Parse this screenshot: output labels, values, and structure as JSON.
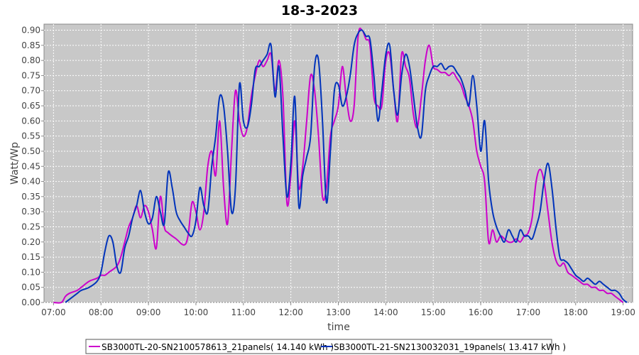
{
  "chart_data": {
    "type": "line",
    "title": "18-3-2023",
    "xlabel": "time",
    "ylabel": "Watt/Wp",
    "xlim": [
      "06:48",
      "19:12"
    ],
    "ylim": [
      0,
      0.92
    ],
    "yticks": [
      "0.00",
      "0.05",
      "0.10",
      "0.15",
      "0.20",
      "0.25",
      "0.30",
      "0.35",
      "0.40",
      "0.45",
      "0.50",
      "0.55",
      "0.60",
      "0.65",
      "0.70",
      "0.75",
      "0.80",
      "0.85",
      "0.90"
    ],
    "xticks": [
      "07:00",
      "08:00",
      "09:00",
      "10:00",
      "11:00",
      "12:00",
      "13:00",
      "14:00",
      "15:00",
      "16:00",
      "17:00",
      "18:00",
      "19:00"
    ],
    "grid": true,
    "legend_position": "bottom",
    "series": [
      {
        "name": "SB3000TL-20-SN2100578613_21panels( 14.140 kWh )",
        "color": "#cc00cc",
        "points": [
          [
            "07:00",
            0.0
          ],
          [
            "07:10",
            0.0
          ],
          [
            "07:15",
            0.02
          ],
          [
            "07:20",
            0.03
          ],
          [
            "07:30",
            0.04
          ],
          [
            "07:35",
            0.05
          ],
          [
            "07:45",
            0.07
          ],
          [
            "07:55",
            0.08
          ],
          [
            "08:00",
            0.09
          ],
          [
            "08:05",
            0.09
          ],
          [
            "08:10",
            0.1
          ],
          [
            "08:20",
            0.12
          ],
          [
            "08:25",
            0.15
          ],
          [
            "08:30",
            0.2
          ],
          [
            "08:35",
            0.25
          ],
          [
            "08:40",
            0.28
          ],
          [
            "08:45",
            0.32
          ],
          [
            "08:50",
            0.28
          ],
          [
            "08:55",
            0.32
          ],
          [
            "09:00",
            0.3
          ],
          [
            "09:05",
            0.24
          ],
          [
            "09:10",
            0.18
          ],
          [
            "09:15",
            0.35
          ],
          [
            "09:20",
            0.25
          ],
          [
            "09:25",
            0.23
          ],
          [
            "09:35",
            0.21
          ],
          [
            "09:45",
            0.19
          ],
          [
            "09:50",
            0.22
          ],
          [
            "09:55",
            0.33
          ],
          [
            "10:00",
            0.3
          ],
          [
            "10:05",
            0.24
          ],
          [
            "10:10",
            0.3
          ],
          [
            "10:15",
            0.45
          ],
          [
            "10:20",
            0.5
          ],
          [
            "10:25",
            0.42
          ],
          [
            "10:30",
            0.6
          ],
          [
            "10:35",
            0.38
          ],
          [
            "10:40",
            0.26
          ],
          [
            "10:45",
            0.5
          ],
          [
            "10:50",
            0.7
          ],
          [
            "10:55",
            0.6
          ],
          [
            "11:00",
            0.55
          ],
          [
            "11:05",
            0.58
          ],
          [
            "11:10",
            0.68
          ],
          [
            "11:15",
            0.75
          ],
          [
            "11:20",
            0.8
          ],
          [
            "11:25",
            0.78
          ],
          [
            "11:30",
            0.8
          ],
          [
            "11:35",
            0.82
          ],
          [
            "11:40",
            0.7
          ],
          [
            "11:45",
            0.8
          ],
          [
            "11:50",
            0.68
          ],
          [
            "11:55",
            0.33
          ],
          [
            "12:00",
            0.42
          ],
          [
            "12:05",
            0.6
          ],
          [
            "12:10",
            0.38
          ],
          [
            "12:15",
            0.45
          ],
          [
            "12:20",
            0.6
          ],
          [
            "12:25",
            0.75
          ],
          [
            "12:30",
            0.7
          ],
          [
            "12:35",
            0.55
          ],
          [
            "12:40",
            0.35
          ],
          [
            "12:45",
            0.38
          ],
          [
            "12:50",
            0.55
          ],
          [
            "12:55",
            0.6
          ],
          [
            "13:00",
            0.65
          ],
          [
            "13:05",
            0.78
          ],
          [
            "13:10",
            0.68
          ],
          [
            "13:15",
            0.6
          ],
          [
            "13:20",
            0.65
          ],
          [
            "13:25",
            0.88
          ],
          [
            "13:30",
            0.9
          ],
          [
            "13:35",
            0.87
          ],
          [
            "13:40",
            0.85
          ],
          [
            "13:45",
            0.68
          ],
          [
            "13:50",
            0.65
          ],
          [
            "13:55",
            0.65
          ],
          [
            "14:00",
            0.8
          ],
          [
            "14:05",
            0.82
          ],
          [
            "14:10",
            0.7
          ],
          [
            "14:15",
            0.6
          ],
          [
            "14:20",
            0.82
          ],
          [
            "14:25",
            0.78
          ],
          [
            "14:30",
            0.74
          ],
          [
            "14:35",
            0.62
          ],
          [
            "14:40",
            0.58
          ],
          [
            "14:45",
            0.68
          ],
          [
            "14:50",
            0.8
          ],
          [
            "14:55",
            0.85
          ],
          [
            "15:00",
            0.78
          ],
          [
            "15:05",
            0.77
          ],
          [
            "15:10",
            0.76
          ],
          [
            "15:15",
            0.76
          ],
          [
            "15:20",
            0.75
          ],
          [
            "15:25",
            0.76
          ],
          [
            "15:30",
            0.74
          ],
          [
            "15:35",
            0.72
          ],
          [
            "15:40",
            0.68
          ],
          [
            "15:45",
            0.65
          ],
          [
            "15:50",
            0.6
          ],
          [
            "15:55",
            0.5
          ],
          [
            "16:00",
            0.45
          ],
          [
            "16:05",
            0.4
          ],
          [
            "16:10",
            0.2
          ],
          [
            "16:15",
            0.24
          ],
          [
            "16:20",
            0.2
          ],
          [
            "16:25",
            0.22
          ],
          [
            "16:30",
            0.21
          ],
          [
            "16:35",
            0.2
          ],
          [
            "16:40",
            0.2
          ],
          [
            "16:45",
            0.21
          ],
          [
            "16:50",
            0.2
          ],
          [
            "16:55",
            0.22
          ],
          [
            "17:00",
            0.23
          ],
          [
            "17:05",
            0.28
          ],
          [
            "17:10",
            0.4
          ],
          [
            "17:15",
            0.44
          ],
          [
            "17:20",
            0.4
          ],
          [
            "17:25",
            0.3
          ],
          [
            "17:30",
            0.2
          ],
          [
            "17:35",
            0.14
          ],
          [
            "17:40",
            0.12
          ],
          [
            "17:45",
            0.13
          ],
          [
            "17:50",
            0.1
          ],
          [
            "17:55",
            0.09
          ],
          [
            "18:00",
            0.08
          ],
          [
            "18:05",
            0.07
          ],
          [
            "18:10",
            0.06
          ],
          [
            "18:15",
            0.06
          ],
          [
            "18:20",
            0.05
          ],
          [
            "18:25",
            0.05
          ],
          [
            "18:30",
            0.04
          ],
          [
            "18:35",
            0.04
          ],
          [
            "18:40",
            0.03
          ],
          [
            "18:45",
            0.03
          ],
          [
            "18:50",
            0.02
          ],
          [
            "18:55",
            0.01
          ],
          [
            "19:00",
            0.0
          ]
        ]
      },
      {
        "name": "SB3000TL-21-SN2130032031_19panels( 13.417 kWh )",
        "color": "#0033bb",
        "points": [
          [
            "07:15",
            0.0
          ],
          [
            "07:20",
            0.01
          ],
          [
            "07:30",
            0.03
          ],
          [
            "07:35",
            0.04
          ],
          [
            "07:45",
            0.05
          ],
          [
            "07:55",
            0.07
          ],
          [
            "08:00",
            0.1
          ],
          [
            "08:05",
            0.17
          ],
          [
            "08:10",
            0.22
          ],
          [
            "08:15",
            0.2
          ],
          [
            "08:20",
            0.12
          ],
          [
            "08:25",
            0.1
          ],
          [
            "08:30",
            0.18
          ],
          [
            "08:35",
            0.22
          ],
          [
            "08:40",
            0.28
          ],
          [
            "08:45",
            0.32
          ],
          [
            "08:50",
            0.37
          ],
          [
            "08:55",
            0.3
          ],
          [
            "09:00",
            0.26
          ],
          [
            "09:05",
            0.28
          ],
          [
            "09:10",
            0.35
          ],
          [
            "09:15",
            0.3
          ],
          [
            "09:20",
            0.26
          ],
          [
            "09:25",
            0.43
          ],
          [
            "09:30",
            0.38
          ],
          [
            "09:35",
            0.3
          ],
          [
            "09:40",
            0.27
          ],
          [
            "09:45",
            0.25
          ],
          [
            "09:50",
            0.23
          ],
          [
            "09:55",
            0.22
          ],
          [
            "10:00",
            0.27
          ],
          [
            "10:05",
            0.38
          ],
          [
            "10:10",
            0.32
          ],
          [
            "10:15",
            0.3
          ],
          [
            "10:20",
            0.45
          ],
          [
            "10:25",
            0.55
          ],
          [
            "10:30",
            0.68
          ],
          [
            "10:35",
            0.65
          ],
          [
            "10:40",
            0.5
          ],
          [
            "10:45",
            0.3
          ],
          [
            "10:50",
            0.38
          ],
          [
            "10:55",
            0.72
          ],
          [
            "11:00",
            0.6
          ],
          [
            "11:05",
            0.58
          ],
          [
            "11:10",
            0.65
          ],
          [
            "11:15",
            0.77
          ],
          [
            "11:20",
            0.78
          ],
          [
            "11:25",
            0.8
          ],
          [
            "11:30",
            0.82
          ],
          [
            "11:35",
            0.85
          ],
          [
            "11:40",
            0.68
          ],
          [
            "11:45",
            0.78
          ],
          [
            "11:50",
            0.55
          ],
          [
            "11:55",
            0.35
          ],
          [
            "12:00",
            0.46
          ],
          [
            "12:05",
            0.68
          ],
          [
            "12:10",
            0.32
          ],
          [
            "12:15",
            0.42
          ],
          [
            "12:20",
            0.48
          ],
          [
            "12:25",
            0.55
          ],
          [
            "12:30",
            0.78
          ],
          [
            "12:35",
            0.8
          ],
          [
            "12:40",
            0.6
          ],
          [
            "12:45",
            0.33
          ],
          [
            "12:50",
            0.5
          ],
          [
            "12:55",
            0.7
          ],
          [
            "13:00",
            0.72
          ],
          [
            "13:05",
            0.65
          ],
          [
            "13:10",
            0.68
          ],
          [
            "13:15",
            0.75
          ],
          [
            "13:20",
            0.85
          ],
          [
            "13:25",
            0.89
          ],
          [
            "13:30",
            0.9
          ],
          [
            "13:35",
            0.88
          ],
          [
            "13:40",
            0.87
          ],
          [
            "13:45",
            0.75
          ],
          [
            "13:50",
            0.6
          ],
          [
            "13:55",
            0.7
          ],
          [
            "14:00",
            0.82
          ],
          [
            "14:05",
            0.85
          ],
          [
            "14:10",
            0.7
          ],
          [
            "14:15",
            0.62
          ],
          [
            "14:20",
            0.75
          ],
          [
            "14:25",
            0.82
          ],
          [
            "14:30",
            0.78
          ],
          [
            "14:35",
            0.68
          ],
          [
            "14:40",
            0.58
          ],
          [
            "14:45",
            0.55
          ],
          [
            "14:50",
            0.7
          ],
          [
            "14:55",
            0.75
          ],
          [
            "15:00",
            0.78
          ],
          [
            "15:05",
            0.78
          ],
          [
            "15:10",
            0.79
          ],
          [
            "15:15",
            0.77
          ],
          [
            "15:20",
            0.78
          ],
          [
            "15:25",
            0.78
          ],
          [
            "15:30",
            0.76
          ],
          [
            "15:35",
            0.74
          ],
          [
            "15:40",
            0.7
          ],
          [
            "15:45",
            0.65
          ],
          [
            "15:50",
            0.75
          ],
          [
            "15:55",
            0.65
          ],
          [
            "16:00",
            0.5
          ],
          [
            "16:05",
            0.6
          ],
          [
            "16:10",
            0.4
          ],
          [
            "16:15",
            0.3
          ],
          [
            "16:20",
            0.25
          ],
          [
            "16:25",
            0.22
          ],
          [
            "16:30",
            0.2
          ],
          [
            "16:35",
            0.24
          ],
          [
            "16:40",
            0.22
          ],
          [
            "16:45",
            0.2
          ],
          [
            "16:50",
            0.24
          ],
          [
            "16:55",
            0.22
          ],
          [
            "17:00",
            0.22
          ],
          [
            "17:05",
            0.21
          ],
          [
            "17:10",
            0.25
          ],
          [
            "17:15",
            0.3
          ],
          [
            "17:20",
            0.4
          ],
          [
            "17:25",
            0.46
          ],
          [
            "17:30",
            0.38
          ],
          [
            "17:35",
            0.25
          ],
          [
            "17:40",
            0.15
          ],
          [
            "17:45",
            0.14
          ],
          [
            "17:50",
            0.13
          ],
          [
            "17:55",
            0.11
          ],
          [
            "18:00",
            0.09
          ],
          [
            "18:05",
            0.08
          ],
          [
            "18:10",
            0.07
          ],
          [
            "18:15",
            0.08
          ],
          [
            "18:20",
            0.07
          ],
          [
            "18:25",
            0.06
          ],
          [
            "18:30",
            0.07
          ],
          [
            "18:35",
            0.06
          ],
          [
            "18:40",
            0.05
          ],
          [
            "18:45",
            0.04
          ],
          [
            "18:50",
            0.04
          ],
          [
            "18:55",
            0.03
          ],
          [
            "19:00",
            0.01
          ],
          [
            "19:05",
            0.0
          ]
        ]
      }
    ]
  }
}
